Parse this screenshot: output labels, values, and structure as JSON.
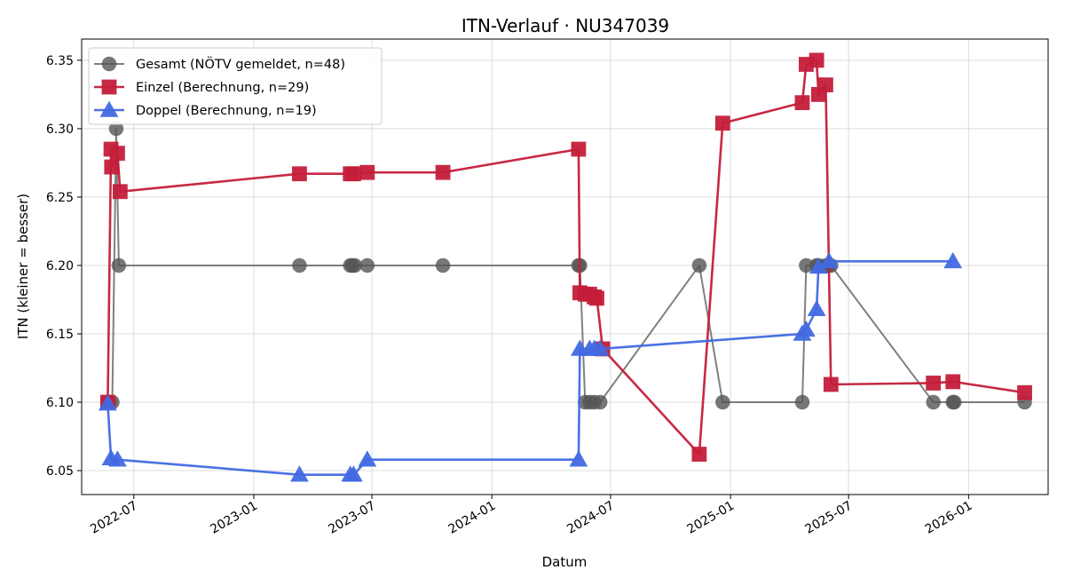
{
  "chart_data": {
    "type": "line",
    "title": "ITN-Verlauf · NU347039",
    "xlabel": "Datum",
    "ylabel": "ITN  (kleiner = besser)",
    "xlim": [
      "2022-04-12",
      "2026-05-03"
    ],
    "ylim": [
      6.0325,
      6.3655
    ],
    "x_ticks": [
      {
        "date": "2022-07-01",
        "label": "2022-07"
      },
      {
        "date": "2023-01-01",
        "label": "2023-01"
      },
      {
        "date": "2023-07-01",
        "label": "2023-07"
      },
      {
        "date": "2024-01-01",
        "label": "2024-01"
      },
      {
        "date": "2024-07-01",
        "label": "2024-07"
      },
      {
        "date": "2025-01-01",
        "label": "2025-01"
      },
      {
        "date": "2025-07-01",
        "label": "2025-07"
      },
      {
        "date": "2026-01-01",
        "label": "2026-01"
      }
    ],
    "y_ticks": [
      {
        "value": 6.05,
        "label": "6.05"
      },
      {
        "value": 6.1,
        "label": "6.10"
      },
      {
        "value": 6.15,
        "label": "6.15"
      },
      {
        "value": 6.2,
        "label": "6.20"
      },
      {
        "value": 6.25,
        "label": "6.25"
      },
      {
        "value": 6.3,
        "label": "6.30"
      },
      {
        "value": 6.35,
        "label": "6.35"
      }
    ],
    "grid": true,
    "legend_position": "top-left",
    "series": [
      {
        "name": "Gesamt (NÖTV gemeldet, n=48)",
        "color": "#555555",
        "marker": "circle",
        "points": [
          [
            "2022-05-22",
            6.1
          ],
          [
            "2022-05-25",
            6.1
          ],
          [
            "2022-05-29",
            6.1
          ],
          [
            "2022-06-04",
            6.3
          ],
          [
            "2022-06-08",
            6.2
          ],
          [
            "2023-03-12",
            6.2
          ],
          [
            "2023-05-29",
            6.2
          ],
          [
            "2023-06-01",
            6.2
          ],
          [
            "2023-06-05",
            6.2
          ],
          [
            "2023-06-24",
            6.2
          ],
          [
            "2023-10-18",
            6.2
          ],
          [
            "2024-05-13",
            6.2
          ],
          [
            "2024-05-15",
            6.2
          ],
          [
            "2024-05-23",
            6.1
          ],
          [
            "2024-05-30",
            6.1
          ],
          [
            "2024-06-06",
            6.1
          ],
          [
            "2024-06-15",
            6.1
          ],
          [
            "2024-11-14",
            6.2
          ],
          [
            "2024-12-20",
            6.1
          ],
          [
            "2025-04-21",
            6.1
          ],
          [
            "2025-04-27",
            6.2
          ],
          [
            "2025-05-13",
            6.2
          ],
          [
            "2025-05-16",
            6.2
          ],
          [
            "2025-05-27",
            6.2
          ],
          [
            "2025-05-31",
            6.2
          ],
          [
            "2025-06-04",
            6.2
          ],
          [
            "2025-11-08",
            6.1
          ],
          [
            "2025-12-08",
            6.1
          ],
          [
            "2025-12-10",
            6.1
          ],
          [
            "2026-03-28",
            6.1
          ]
        ]
      },
      {
        "name": "Einzel (Berechnung, n=29)",
        "color": "#c41e3a",
        "marker": "square",
        "points": [
          [
            "2022-05-22",
            6.1
          ],
          [
            "2022-05-27",
            6.285
          ],
          [
            "2022-05-28",
            6.272
          ],
          [
            "2022-06-06",
            6.282
          ],
          [
            "2022-06-10",
            6.254
          ],
          [
            "2023-03-12",
            6.267
          ],
          [
            "2023-05-29",
            6.267
          ],
          [
            "2023-06-03",
            6.267
          ],
          [
            "2023-06-24",
            6.268
          ],
          [
            "2023-10-18",
            6.268
          ],
          [
            "2024-05-13",
            6.285
          ],
          [
            "2024-05-15",
            6.18
          ],
          [
            "2024-05-23",
            6.179
          ],
          [
            "2024-05-30",
            6.179
          ],
          [
            "2024-06-06",
            6.177
          ],
          [
            "2024-06-10",
            6.176
          ],
          [
            "2024-06-19",
            6.139
          ],
          [
            "2024-11-14",
            6.062
          ],
          [
            "2024-12-20",
            6.304
          ],
          [
            "2025-04-21",
            6.319
          ],
          [
            "2025-04-27",
            6.347
          ],
          [
            "2025-05-13",
            6.35
          ],
          [
            "2025-05-16",
            6.325
          ],
          [
            "2025-05-27",
            6.332
          ],
          [
            "2025-06-04",
            6.113
          ],
          [
            "2025-11-08",
            6.114
          ],
          [
            "2025-12-08",
            6.115
          ],
          [
            "2026-03-28",
            6.107
          ]
        ]
      },
      {
        "name": "Doppel (Berechnung, n=19)",
        "color": "#4169e1",
        "marker": "triangle",
        "points": [
          [
            "2022-05-22",
            6.099
          ],
          [
            "2022-05-27",
            6.059
          ],
          [
            "2022-06-06",
            6.058
          ],
          [
            "2023-03-12",
            6.047
          ],
          [
            "2023-05-29",
            6.047
          ],
          [
            "2023-06-03",
            6.047
          ],
          [
            "2023-06-24",
            6.058
          ],
          [
            "2024-05-13",
            6.058
          ],
          [
            "2024-05-15",
            6.139
          ],
          [
            "2024-05-30",
            6.139
          ],
          [
            "2024-06-06",
            6.139
          ],
          [
            "2024-06-15",
            6.139
          ],
          [
            "2025-04-21",
            6.15
          ],
          [
            "2025-04-27",
            6.153
          ],
          [
            "2025-05-13",
            6.168
          ],
          [
            "2025-05-16",
            6.199
          ],
          [
            "2025-06-01",
            6.203
          ],
          [
            "2025-12-08",
            6.203
          ]
        ]
      }
    ]
  }
}
